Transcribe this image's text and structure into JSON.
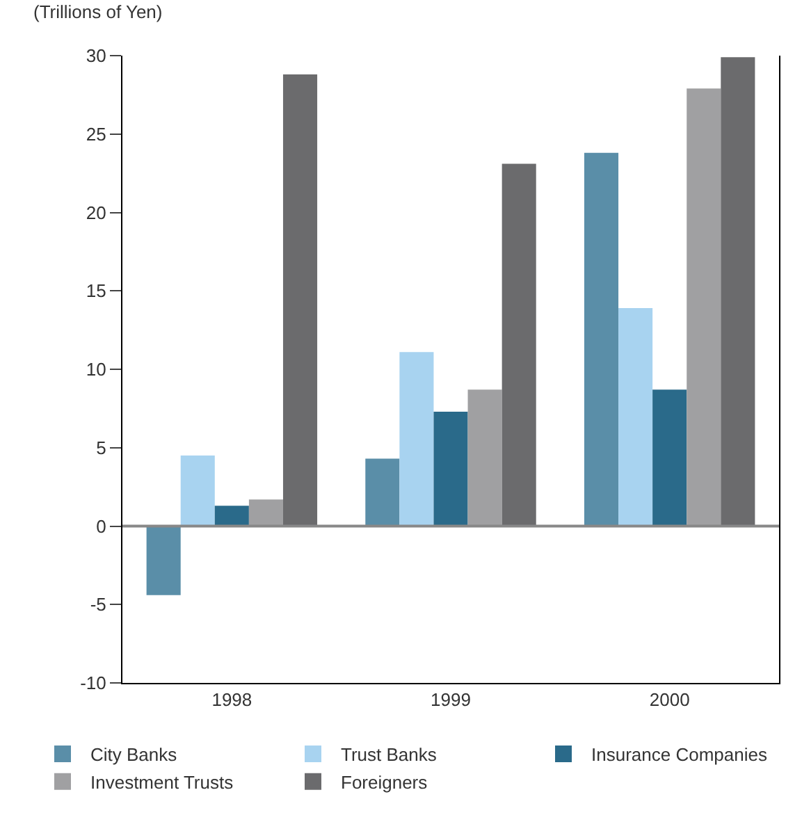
{
  "chart_data": {
    "type": "bar",
    "ylabel": "(Trillions of Yen)",
    "categories": [
      "1998",
      "1999",
      "2000"
    ],
    "series": [
      {
        "name": "City Banks",
        "color": "#5a8ea8",
        "values": [
          -4.4,
          4.3,
          23.8
        ]
      },
      {
        "name": "Trust Banks",
        "color": "#a8d3f0",
        "values": [
          4.5,
          11.1,
          13.9
        ]
      },
      {
        "name": "Insurance Companies",
        "color": "#2a6a8a",
        "values": [
          1.3,
          7.3,
          8.7
        ]
      },
      {
        "name": "Investment Trusts",
        "color": "#a0a0a2",
        "values": [
          1.7,
          8.7,
          27.9
        ]
      },
      {
        "name": "Foreigners",
        "color": "#6b6b6d",
        "values": [
          28.8,
          23.1,
          29.9
        ]
      }
    ],
    "ylim": [
      -10,
      30
    ],
    "yticks": [
      -10,
      -5,
      0,
      5,
      10,
      15,
      20,
      25,
      30
    ],
    "ref_lines": [
      {
        "axis": "y",
        "value": 0,
        "color": "#888888"
      }
    ],
    "legend": "bottom"
  }
}
